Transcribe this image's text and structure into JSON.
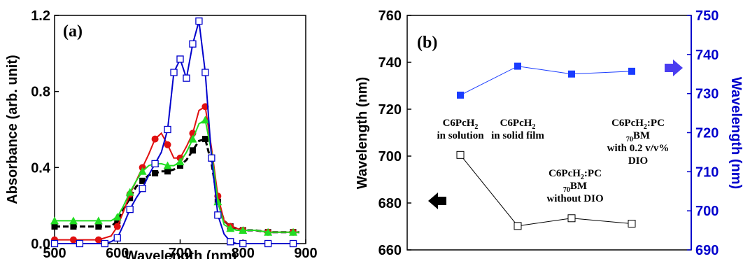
{
  "chart_data": [
    {
      "type": "line",
      "panel_label": "(a)",
      "xlabel": "Wavelength (nm)",
      "ylabel": "Absorbance (arb. unit)",
      "xlim": [
        500,
        900
      ],
      "ylim": [
        0,
        1.2
      ],
      "xticks": [
        "500",
        "600",
        "700",
        "800",
        "900"
      ],
      "yticks": [
        "0.0",
        "0.4",
        "0.8",
        "1.2"
      ],
      "series": [
        {
          "marker": "square",
          "color": "#000000",
          "line_style": "dashed",
          "x": [
            500,
            510,
            530,
            550,
            570,
            590,
            600,
            610,
            620,
            630,
            640,
            650,
            660,
            670,
            680,
            690,
            700,
            710,
            720,
            730,
            740,
            750,
            760,
            770,
            780,
            790,
            800,
            820,
            840,
            860,
            880,
            890
          ],
          "y": [
            0.09,
            0.09,
            0.09,
            0.09,
            0.09,
            0.09,
            0.12,
            0.18,
            0.24,
            0.3,
            0.33,
            0.36,
            0.37,
            0.38,
            0.38,
            0.39,
            0.41,
            0.44,
            0.49,
            0.54,
            0.55,
            0.42,
            0.22,
            0.12,
            0.09,
            0.08,
            0.07,
            0.07,
            0.06,
            0.06,
            0.06,
            0.06
          ]
        },
        {
          "marker": "circle",
          "color": "#e01010",
          "line_style": "solid",
          "x": [
            500,
            510,
            530,
            550,
            570,
            590,
            600,
            610,
            620,
            630,
            640,
            650,
            660,
            670,
            680,
            690,
            700,
            710,
            720,
            730,
            740,
            750,
            760,
            770,
            780,
            790,
            800,
            820,
            840,
            860,
            880,
            890
          ],
          "y": [
            0.02,
            0.02,
            0.02,
            0.02,
            0.02,
            0.04,
            0.09,
            0.17,
            0.26,
            0.33,
            0.4,
            0.47,
            0.55,
            0.58,
            0.52,
            0.45,
            0.45,
            0.51,
            0.58,
            0.7,
            0.72,
            0.5,
            0.25,
            0.12,
            0.09,
            0.08,
            0.07,
            0.07,
            0.06,
            0.06,
            0.06,
            0.06
          ]
        },
        {
          "marker": "triangle",
          "color": "#22dd22",
          "line_style": "solid",
          "x": [
            500,
            510,
            530,
            550,
            570,
            590,
            600,
            610,
            620,
            630,
            640,
            650,
            660,
            670,
            680,
            690,
            700,
            710,
            720,
            730,
            740,
            750,
            760,
            770,
            780,
            790,
            800,
            820,
            840,
            860,
            880,
            890
          ],
          "y": [
            0.12,
            0.12,
            0.12,
            0.12,
            0.12,
            0.12,
            0.14,
            0.2,
            0.27,
            0.33,
            0.38,
            0.41,
            0.42,
            0.42,
            0.41,
            0.41,
            0.43,
            0.48,
            0.55,
            0.63,
            0.65,
            0.48,
            0.22,
            0.1,
            0.08,
            0.07,
            0.07,
            0.07,
            0.06,
            0.06,
            0.06,
            0.06
          ]
        },
        {
          "marker": "open-square",
          "color": "#0000cc",
          "line_style": "solid",
          "x": [
            500,
            520,
            540,
            560,
            580,
            590,
            600,
            610,
            620,
            630,
            640,
            650,
            660,
            670,
            680,
            690,
            700,
            710,
            720,
            730,
            740,
            750,
            760,
            770,
            780,
            790,
            800,
            820,
            840,
            860,
            880,
            890
          ],
          "y": [
            0.0,
            0.0,
            0.0,
            0.0,
            0.0,
            0.01,
            0.03,
            0.1,
            0.18,
            0.24,
            0.29,
            0.36,
            0.42,
            0.48,
            0.6,
            0.9,
            0.97,
            0.87,
            1.05,
            1.17,
            0.9,
            0.45,
            0.15,
            0.05,
            0.01,
            0.0,
            0.0,
            0.0,
            0.0,
            0.0,
            0.0,
            0.0
          ]
        }
      ]
    },
    {
      "type": "line",
      "panel_label": "(b)",
      "ylabel": "Wavelength (nm)",
      "y2label": "Wavelength (nm)",
      "ylim": [
        660,
        760
      ],
      "y2lim": [
        690,
        750
      ],
      "yticks": [
        "660",
        "680",
        "700",
        "720",
        "740",
        "760"
      ],
      "y2ticks": [
        "690",
        "700",
        "710",
        "720",
        "730",
        "740",
        "750"
      ],
      "categories": [
        "C6PcH2 in solution",
        "C6PcH2 in solid film",
        "C6PcH2:PC70BM without DIO",
        "C6PcH2:PC70BM with 0.2 v/v% DIO"
      ],
      "series": [
        {
          "axis": "left",
          "marker": "open-square",
          "color": "#000000",
          "values": [
            700.5,
            670.2,
            673.5,
            671.2
          ]
        },
        {
          "axis": "right",
          "marker": "square",
          "color": "#1a3cff",
          "values": [
            729.6,
            737.0,
            735.0,
            735.7
          ]
        }
      ],
      "annotations": [
        {
          "lines": [
            [
              "C6PcH",
              "2",
              ""
            ],
            [
              "in solution",
              "",
              ""
            ]
          ]
        },
        {
          "lines": [
            [
              "C6PcH",
              "2",
              ""
            ],
            [
              "in solid film",
              "",
              ""
            ]
          ]
        },
        {
          "lines": [
            [
              "C6PcH",
              "2",
              ":PC"
            ],
            [
              "",
              "70",
              "BM"
            ],
            [
              "without DIO",
              "",
              ""
            ]
          ]
        },
        {
          "lines": [
            [
              "C6PcH",
              "2",
              ":PC"
            ],
            [
              "",
              "70",
              "BM"
            ],
            [
              "with 0.2 v/v%",
              "",
              ""
            ],
            [
              "DIO",
              "",
              ""
            ]
          ]
        }
      ]
    }
  ]
}
